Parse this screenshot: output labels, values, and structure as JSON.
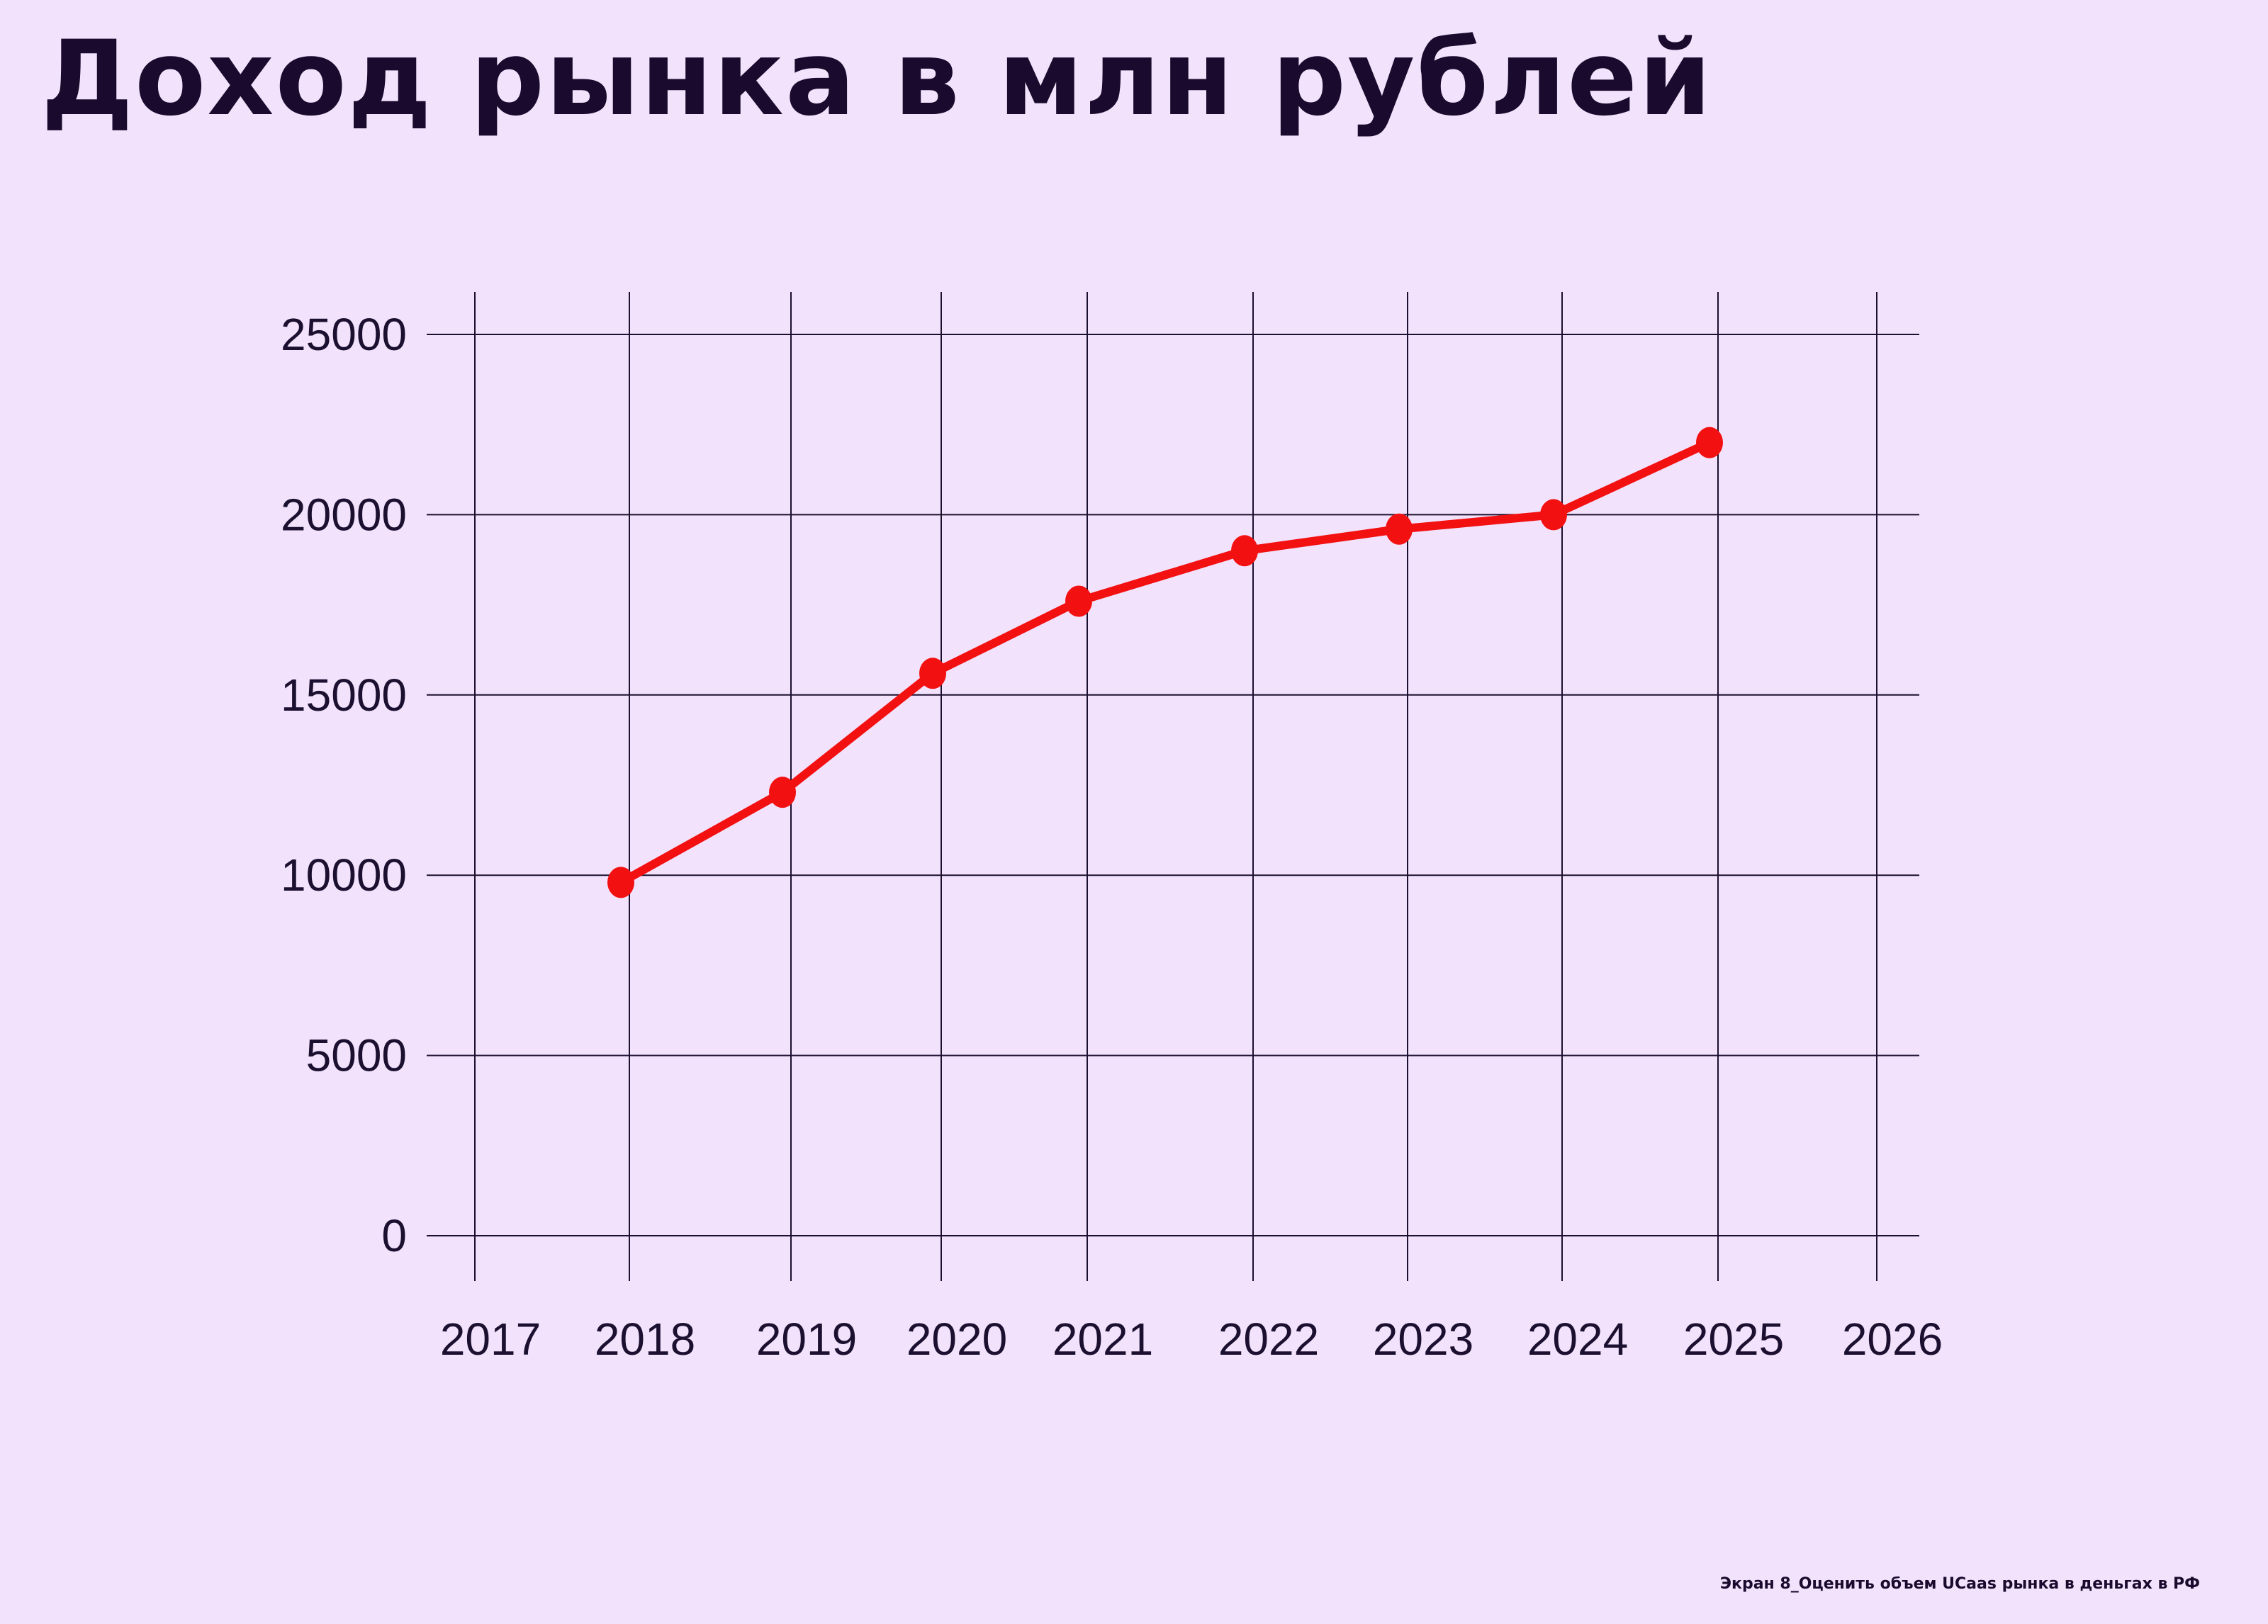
{
  "page": {
    "title": "Доход рынка в млн рублей",
    "footer_caption": "Экран 8_Оценить объем UCaas рынка в деньгах в РФ"
  },
  "colors": {
    "background": "#f2e2fb",
    "title": "#1a0b2e",
    "grid": "#1c1030",
    "series": "#f21010"
  },
  "chart_data": {
    "type": "line",
    "title": "Доход рынка в млн рублей",
    "xlabel": "",
    "ylabel": "",
    "x_ticks": [
      "2017",
      "2018",
      "2019",
      "2020",
      "2021",
      "2022",
      "2023",
      "2024",
      "2025",
      "2026"
    ],
    "y_ticks": [
      "25000",
      "20000",
      "15000",
      "10000",
      "5000",
      "0"
    ],
    "ylim": [
      0,
      25000
    ],
    "grid": true,
    "legend": "none",
    "series": [
      {
        "x": [
          "2018",
          "2019",
          "2020",
          "2021",
          "2022",
          "2023",
          "2024",
          "2025"
        ],
        "values": [
          9800,
          12300,
          15600,
          17600,
          19000,
          19600,
          20000,
          22000
        ]
      }
    ]
  }
}
